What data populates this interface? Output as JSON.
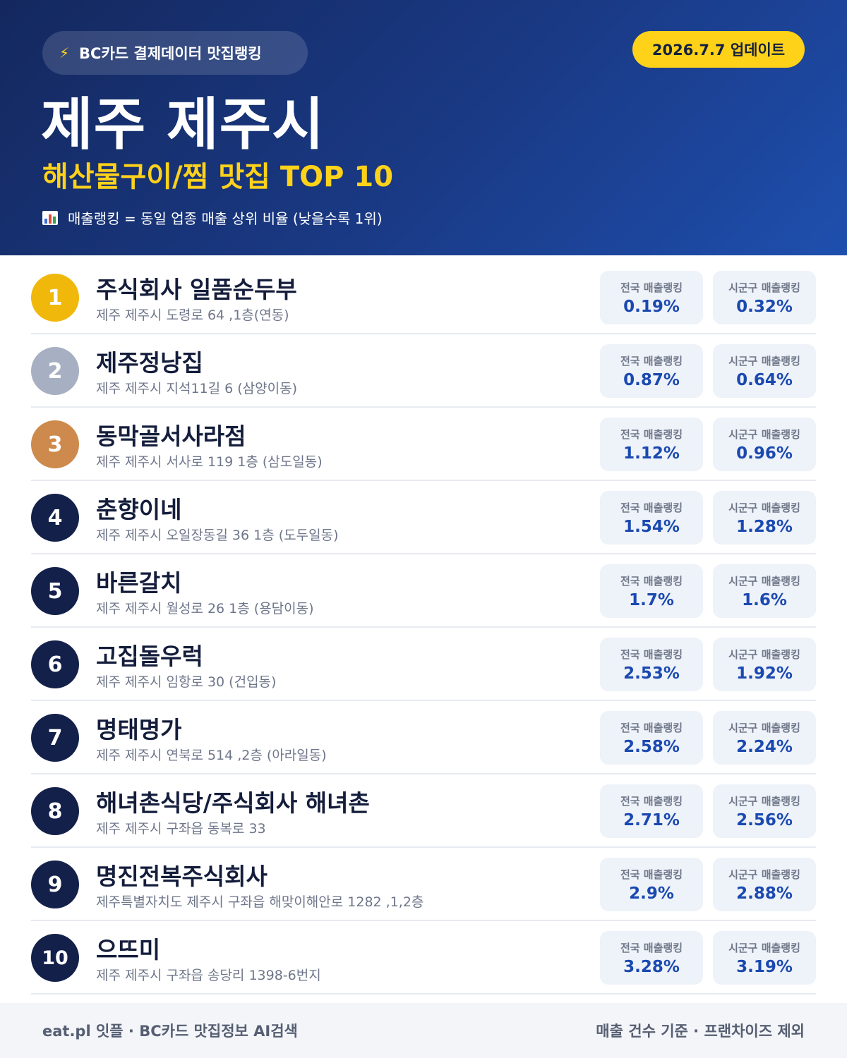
{
  "header": {
    "badge_icon": "lightning-bolt-icon",
    "badge_label": "BC카드 결제데이터 맛집랭킹",
    "update_label": "2026.7.7 업데이트",
    "title": "제주 제주시",
    "subtitle": "해산물구이/찜 맛집 TOP 10",
    "note_icon": "bar-chart-icon",
    "note": "매출랭킹 = 동일 업종 매출 상위 비율 (낮을수록 1위)"
  },
  "labels": {
    "national": "전국 매출랭킹",
    "local": "시군구 매출랭킹"
  },
  "colors": {
    "header_bg": "#1a3a86",
    "accent_yellow": "#ffd21a",
    "rank_gold": "#f1b80c",
    "rank_silver": "#a7b0c2",
    "rank_bronze": "#cd8a4c",
    "rank_default": "#13204a",
    "value_blue": "#1a49b0"
  },
  "restaurants": [
    {
      "rank": "1",
      "name": "주식회사 일품순두부",
      "address": "제주 제주시 도령로 64 ,1층(연동)",
      "national": "0.19%",
      "local": "0.32%"
    },
    {
      "rank": "2",
      "name": "제주정낭집",
      "address": "제주 제주시 지석11길 6 (삼양이동)",
      "national": "0.87%",
      "local": "0.64%"
    },
    {
      "rank": "3",
      "name": "동막골서사라점",
      "address": "제주 제주시 서사로 119 1층 (삼도일동)",
      "national": "1.12%",
      "local": "0.96%"
    },
    {
      "rank": "4",
      "name": "춘향이네",
      "address": "제주 제주시 오일장동길 36 1층 (도두일동)",
      "national": "1.54%",
      "local": "1.28%"
    },
    {
      "rank": "5",
      "name": "바른갈치",
      "address": "제주 제주시 월성로 26 1층 (용담이동)",
      "national": "1.7%",
      "local": "1.6%"
    },
    {
      "rank": "6",
      "name": "고집돌우럭",
      "address": "제주 제주시 임항로 30 (건입동)",
      "national": "2.53%",
      "local": "1.92%"
    },
    {
      "rank": "7",
      "name": "명태명가",
      "address": "제주 제주시 연북로 514 ,2층 (아라일동)",
      "national": "2.58%",
      "local": "2.24%"
    },
    {
      "rank": "8",
      "name": "해녀촌식당/주식회사 해녀촌",
      "address": "제주 제주시 구좌읍 동복로 33",
      "national": "2.71%",
      "local": "2.56%"
    },
    {
      "rank": "9",
      "name": "명진전복주식회사",
      "address": "제주특별자치도 제주시 구좌읍 해맞이해안로 1282 ,1,2층",
      "national": "2.9%",
      "local": "2.88%"
    },
    {
      "rank": "10",
      "name": "으뜨미",
      "address": "제주 제주시 구좌읍 송당리 1398-6번지",
      "national": "3.28%",
      "local": "3.19%"
    }
  ],
  "footer": {
    "left": "eat.pl 잇플 · BC카드 맛집정보 AI검색",
    "right": "매출 건수 기준 · 프랜차이즈 제외"
  }
}
